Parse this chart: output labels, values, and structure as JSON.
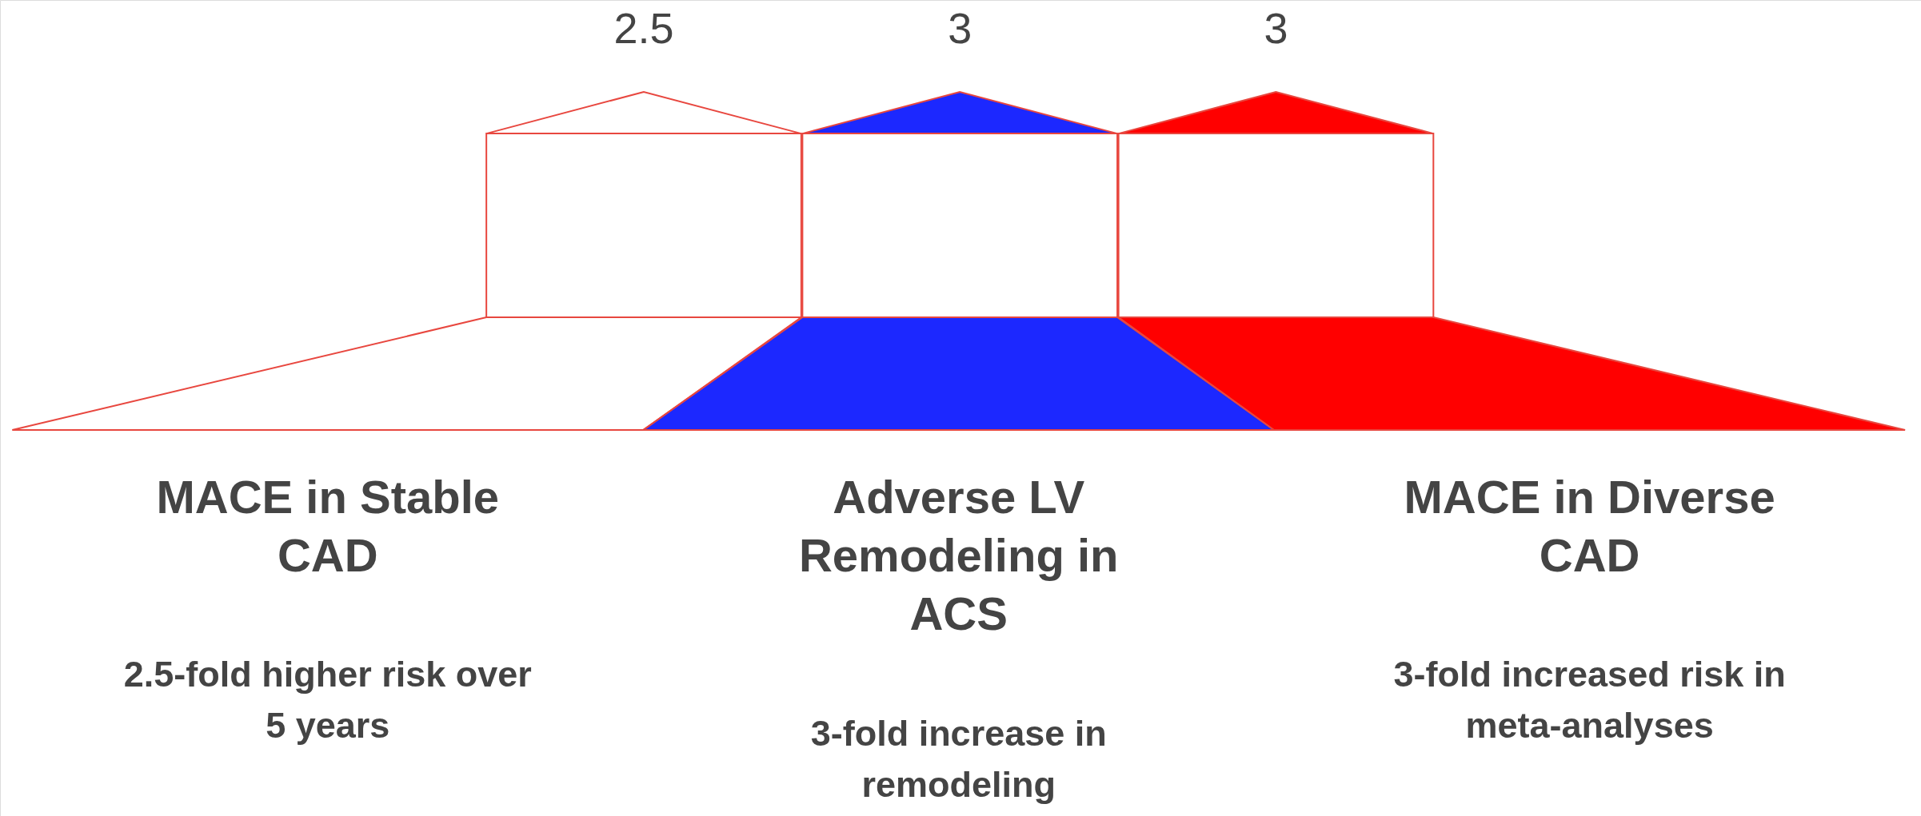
{
  "chart_data": {
    "type": "other",
    "categories": [
      "MACE in Stable CAD",
      "Adverse LV Remodeling in ACS",
      "MACE in Diverse CAD"
    ],
    "values": [
      2.5,
      3,
      3
    ],
    "colors": [
      "#ffffff",
      "#1c28ff",
      "#ff0000"
    ],
    "data_labels": true,
    "annotations": [
      "2.5-fold higher risk over 5 years",
      "3-fold increase in remodeling",
      "3-fold increased risk in meta-analyses"
    ]
  }
}
